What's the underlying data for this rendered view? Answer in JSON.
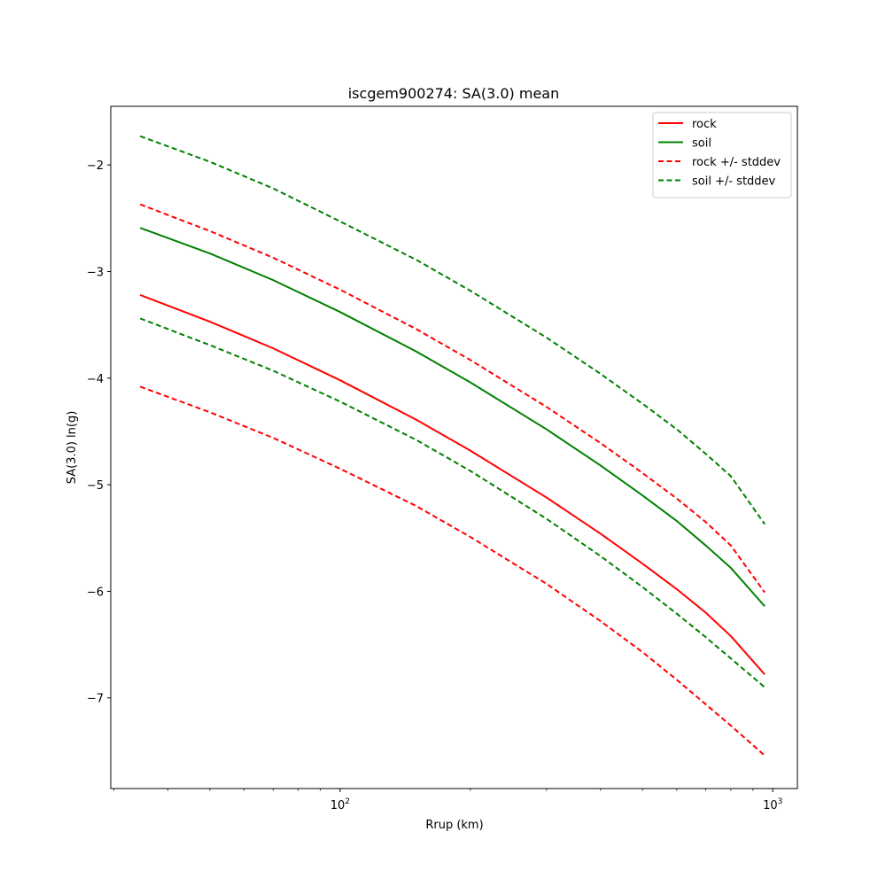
{
  "chart_data": {
    "type": "line",
    "title": "iscgem900274: SA(3.0) mean",
    "xlabel": "Rrup (km)",
    "ylabel": "SA(3.0) ln(g)",
    "xscale": "log",
    "xlim": [
      29.5,
      1140
    ],
    "ylim": [
      -7.85,
      -1.45
    ],
    "yticks": [
      -2,
      -3,
      -4,
      -5,
      -6,
      -7
    ],
    "ytick_labels": [
      "−2",
      "−3",
      "−4",
      "−5",
      "−6",
      "−7"
    ],
    "xticks_major": [
      100,
      1000
    ],
    "xtick_labels": [
      {
        "base": "10",
        "exp": "2"
      },
      {
        "base": "10",
        "exp": "3"
      }
    ],
    "xticks_minor": [
      30,
      40,
      50,
      60,
      70,
      80,
      90,
      200,
      300,
      400,
      500,
      600,
      700,
      800,
      900
    ],
    "grid": false,
    "legend_position": "top-right",
    "series": [
      {
        "name": "rock",
        "color": "#ff0000",
        "style": "solid",
        "x": [
          34.5,
          50,
          70,
          100,
          150,
          200,
          300,
          400,
          500,
          600,
          700,
          800,
          958
        ],
        "y": [
          -3.22,
          -3.47,
          -3.72,
          -4.02,
          -4.39,
          -4.68,
          -5.12,
          -5.46,
          -5.74,
          -5.98,
          -6.2,
          -6.42,
          -6.78
        ]
      },
      {
        "name": "soil",
        "color": "#008000",
        "style": "solid",
        "x": [
          34.5,
          50,
          70,
          100,
          150,
          200,
          300,
          400,
          500,
          600,
          700,
          800,
          958
        ],
        "y": [
          -2.59,
          -2.83,
          -3.08,
          -3.38,
          -3.75,
          -4.04,
          -4.48,
          -4.82,
          -5.1,
          -5.34,
          -5.57,
          -5.78,
          -6.14
        ]
      },
      {
        "name": "rock +/- stddev",
        "color": "#ff0000",
        "style": "dashed",
        "x": [
          34.5,
          50,
          70,
          100,
          150,
          200,
          300,
          400,
          500,
          600,
          700,
          800,
          958
        ],
        "y": [
          -2.37,
          -2.62,
          -2.87,
          -3.17,
          -3.54,
          -3.83,
          -4.27,
          -4.61,
          -4.89,
          -5.13,
          -5.35,
          -5.57,
          -6.01
        ]
      },
      {
        "name": "",
        "color": "#ff0000",
        "style": "dashed",
        "x": [
          34.5,
          50,
          70,
          100,
          150,
          200,
          300,
          400,
          500,
          600,
          700,
          800,
          958
        ],
        "y": [
          -4.08,
          -4.32,
          -4.56,
          -4.85,
          -5.2,
          -5.49,
          -5.93,
          -6.28,
          -6.57,
          -6.83,
          -7.06,
          -7.26,
          -7.54
        ]
      },
      {
        "name": "soil +/- stddev",
        "color": "#008000",
        "style": "dashed",
        "x": [
          34.5,
          50,
          70,
          100,
          150,
          200,
          300,
          400,
          500,
          600,
          700,
          800,
          958
        ],
        "y": [
          -1.73,
          -1.97,
          -2.22,
          -2.53,
          -2.89,
          -3.18,
          -3.62,
          -3.96,
          -4.24,
          -4.48,
          -4.71,
          -4.92,
          -5.37
        ]
      },
      {
        "name": "",
        "color": "#008000",
        "style": "dashed",
        "x": [
          34.5,
          50,
          70,
          100,
          150,
          200,
          300,
          400,
          500,
          600,
          700,
          800,
          958
        ],
        "y": [
          -3.44,
          -3.69,
          -3.93,
          -4.22,
          -4.58,
          -4.87,
          -5.32,
          -5.67,
          -5.96,
          -6.21,
          -6.43,
          -6.63,
          -6.9
        ]
      }
    ]
  }
}
